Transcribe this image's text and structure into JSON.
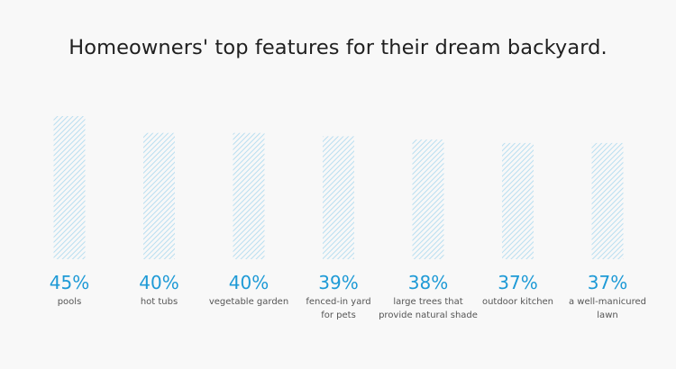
{
  "chart_data": {
    "type": "bar",
    "title": "Homeowners' top features for their dream backyard.",
    "categories": [
      "pools",
      "hot tubs",
      "vegetable garden",
      "fenced-in yard\nfor pets",
      "large trees that\nprovide natural shade",
      "outdoor kitchen",
      "a well-manicured\nlawn"
    ],
    "values": [
      45,
      40,
      40,
      39,
      38,
      37,
      37
    ],
    "value_labels": [
      "45%",
      "40%",
      "40%",
      "39%",
      "38%",
      "37%",
      "37%"
    ],
    "bar_color": "#b9def0",
    "value_label_color": "#1e9ad6",
    "bar_pattern": "diagonal-hatch"
  }
}
